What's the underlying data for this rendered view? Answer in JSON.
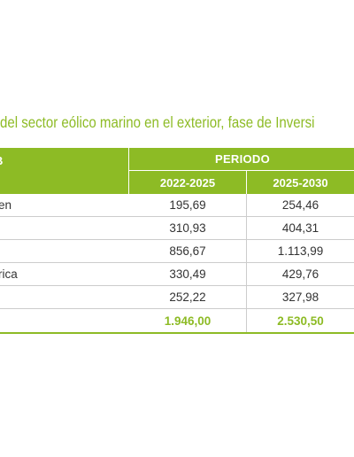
{
  "title": "del sector eólico marino en el exterior, fase de Inversi",
  "colors": {
    "accent": "#8dbb25",
    "title": "#8dbb25",
    "values": "#333333"
  },
  "table": {
    "first_col_header": "B",
    "group_header": "PERIODO",
    "columns": [
      "2022-2025",
      "2025-2030"
    ],
    "rows": [
      {
        "label": "en",
        "v1": "195,69",
        "v2": "254,46"
      },
      {
        "label": "",
        "v1": "310,93",
        "v2": "404,31"
      },
      {
        "label": "",
        "v1": "856,67",
        "v2": "1.113,99"
      },
      {
        "label": "rica",
        "v1": "330,49",
        "v2": "429,76"
      },
      {
        "label": "",
        "v1": "252,22",
        "v2": "327,98"
      }
    ],
    "total": {
      "label": "",
      "v1": "1.946,00",
      "v2": "2.530,50"
    }
  }
}
